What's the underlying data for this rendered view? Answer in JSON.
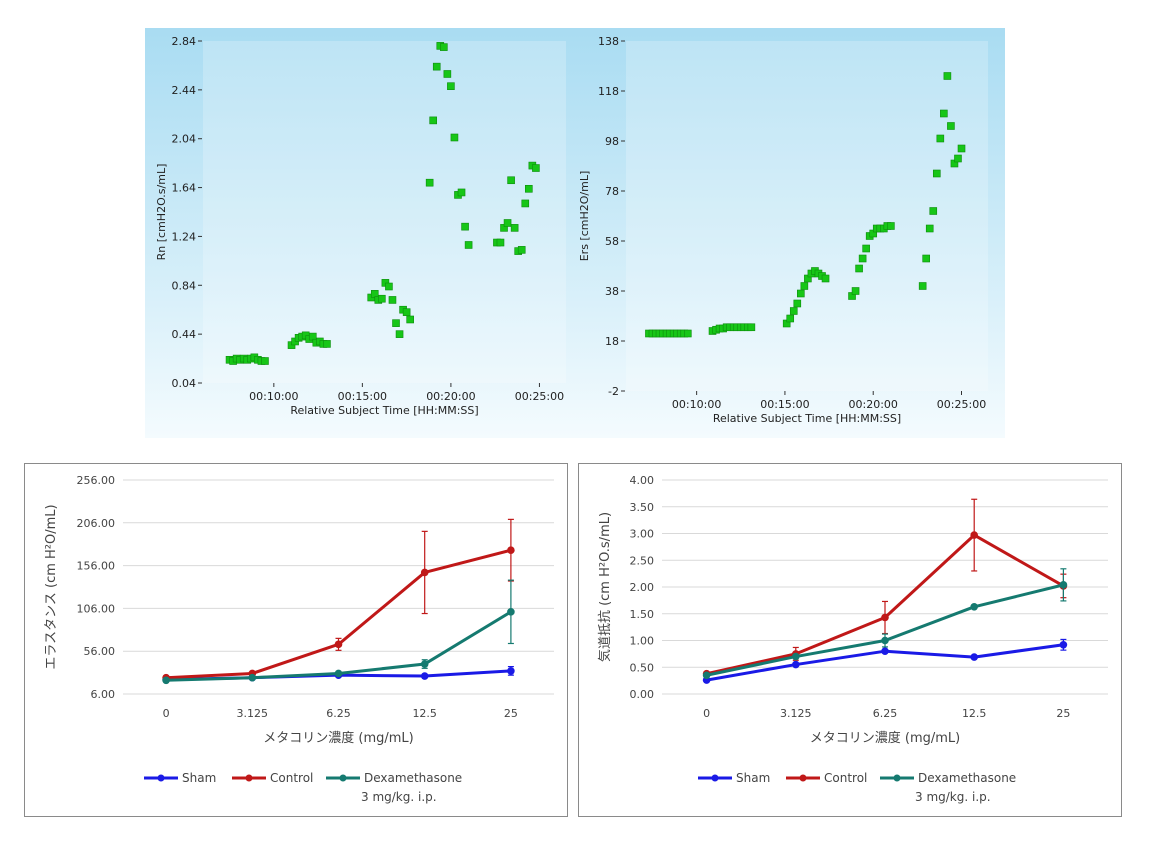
{
  "chart_data": [
    {
      "type": "scatter",
      "ylabel": "Rn [cmH2O.s/mL]",
      "xlabel": "Relative Subject Time [HH:MM:SS]",
      "ylim": [
        0.04,
        2.84
      ],
      "yticks": [
        "0.04",
        "0.44",
        "0.84",
        "1.24",
        "1.64",
        "2.04",
        "2.44",
        "2.84"
      ],
      "xticks": [
        "00:10:00",
        "00:15:00",
        "00:20:00",
        "00:25:00"
      ],
      "xtick_values": [
        10,
        15,
        20,
        25
      ],
      "xlim": [
        6.0,
        26.5
      ],
      "marker_color": "#17c617",
      "series": [
        {
          "x": [
            7.5,
            7.7,
            7.9,
            8.1,
            8.3,
            8.5,
            8.7,
            8.9,
            9.1,
            9.3,
            9.5,
            11.0,
            11.2,
            11.4,
            11.6,
            11.8,
            12.0,
            12.2,
            12.4,
            12.6,
            12.8,
            13.0,
            15.5,
            15.7,
            15.9,
            16.1,
            16.3,
            16.5,
            16.7,
            16.9,
            17.1,
            17.3,
            17.5,
            17.7,
            18.8,
            19.0,
            19.2,
            19.4,
            19.6,
            19.8,
            20.0,
            20.2,
            20.4,
            20.6,
            20.8,
            21.0,
            22.6,
            22.8,
            23.0,
            23.2,
            23.4,
            23.6,
            23.8,
            24.0,
            24.2,
            24.4,
            24.6,
            24.8
          ],
          "y": [
            0.23,
            0.22,
            0.24,
            0.23,
            0.24,
            0.23,
            0.24,
            0.25,
            0.23,
            0.22,
            0.22,
            0.35,
            0.38,
            0.41,
            0.42,
            0.43,
            0.4,
            0.42,
            0.37,
            0.38,
            0.36,
            0.36,
            0.74,
            0.77,
            0.72,
            0.73,
            0.86,
            0.83,
            0.72,
            0.53,
            0.44,
            0.64,
            0.62,
            0.56,
            1.68,
            2.19,
            2.63,
            2.8,
            2.79,
            2.57,
            2.47,
            2.05,
            1.58,
            1.6,
            1.32,
            1.17,
            1.19,
            1.19,
            1.31,
            1.35,
            1.7,
            1.31,
            1.12,
            1.13,
            1.51,
            1.63,
            1.82,
            1.8
          ]
        }
      ]
    },
    {
      "type": "scatter",
      "ylabel": "Ers [cmH2O/mL]",
      "xlabel": "Relative Subject Time [HH:MM:SS]",
      "ylim": [
        -2,
        138
      ],
      "yticks": [
        "-2",
        "18",
        "38",
        "58",
        "78",
        "98",
        "118",
        "138"
      ],
      "xticks": [
        "00:10:00",
        "00:15:00",
        "00:20:00",
        "00:25:00"
      ],
      "xtick_values": [
        10,
        15,
        20,
        25
      ],
      "xlim": [
        6.0,
        26.5
      ],
      "marker_color": "#17c617",
      "series": [
        {
          "x": [
            7.3,
            7.5,
            7.7,
            7.9,
            8.1,
            8.3,
            8.5,
            8.7,
            8.9,
            9.1,
            9.3,
            9.5,
            10.9,
            11.1,
            11.3,
            11.5,
            11.7,
            11.9,
            12.1,
            12.3,
            12.5,
            12.7,
            12.9,
            13.1,
            15.1,
            15.3,
            15.5,
            15.7,
            15.9,
            16.1,
            16.3,
            16.5,
            16.7,
            16.9,
            17.1,
            17.3,
            18.8,
            19.0,
            19.2,
            19.4,
            19.6,
            19.8,
            20.0,
            20.2,
            20.4,
            20.6,
            20.8,
            21.0,
            22.8,
            23.0,
            23.2,
            23.4,
            23.6,
            23.8,
            24.0,
            24.2,
            24.4,
            24.6,
            24.8,
            25.0
          ],
          "y": [
            21,
            21,
            21,
            21,
            21,
            21,
            21,
            21,
            21,
            21,
            21,
            21,
            22,
            22.5,
            23,
            23,
            23.5,
            23.5,
            23.5,
            23.5,
            23.5,
            23.5,
            23.5,
            23.5,
            25,
            27,
            30,
            33,
            37,
            40,
            43,
            45,
            46,
            45,
            44,
            43,
            36,
            38,
            47,
            51,
            55,
            60,
            61,
            63,
            63,
            63,
            64,
            64,
            40,
            51,
            63,
            70,
            85,
            99,
            109,
            124,
            104,
            89,
            91,
            95
          ]
        }
      ]
    },
    {
      "type": "line",
      "ylabel": "エラスタンス (cm H²O/mL)",
      "xlabel": "メタコリン濃度 (mg/mL)",
      "categories": [
        "0",
        "3.125",
        "6.25",
        "12.5",
        "25"
      ],
      "ylim": [
        6,
        256
      ],
      "yticks": [
        "256.00",
        "206.00",
        "156.00",
        "106.00",
        "56.00",
        "6.00"
      ],
      "legend": {
        "placement": "bottom"
      },
      "series": [
        {
          "name": "Sham",
          "color": "#1a1ae6",
          "values": [
            23,
            25,
            28,
            27,
            33
          ],
          "err": [
            0,
            0,
            0,
            0,
            5
          ]
        },
        {
          "name": "Control",
          "color": "#c01818",
          "values": [
            25,
            30,
            64,
            148,
            174
          ],
          "err": [
            0,
            0,
            7,
            48,
            36
          ]
        },
        {
          "name": "Dexamethasone",
          "name2": "3 mg/kg.  i.p.",
          "color": "#157a70",
          "values": [
            22,
            25,
            30,
            41,
            102
          ],
          "err": [
            0,
            0,
            0,
            5,
            37
          ]
        }
      ]
    },
    {
      "type": "line",
      "ylabel": "気道抵抗 (cm H²O.s/mL)",
      "xlabel": "メタコリン濃度 (mg/mL)",
      "categories": [
        "0",
        "3.125",
        "6.25",
        "12.5",
        "25"
      ],
      "ylim": [
        0,
        4
      ],
      "yticks": [
        "4.00",
        "3.50",
        "3.00",
        "2.50",
        "2.00",
        "1.50",
        "1.00",
        "0.50",
        "0.00"
      ],
      "legend": {
        "placement": "bottom"
      },
      "series": [
        {
          "name": "Sham",
          "color": "#1a1ae6",
          "values": [
            0.26,
            0.55,
            0.8,
            0.69,
            0.92
          ],
          "err": [
            0,
            0,
            0,
            0,
            0.1
          ]
        },
        {
          "name": "Control",
          "color": "#c01818",
          "values": [
            0.38,
            0.75,
            1.43,
            2.97,
            2.02
          ],
          "err": [
            0,
            0.12,
            0.3,
            0.67,
            0.22
          ]
        },
        {
          "name": "Dexamethasone",
          "name2": "3 mg/kg.  i.p.",
          "color": "#157a70",
          "values": [
            0.35,
            0.7,
            1.0,
            1.63,
            2.04
          ],
          "err": [
            0,
            0,
            0.12,
            0,
            0.3
          ]
        }
      ]
    }
  ]
}
